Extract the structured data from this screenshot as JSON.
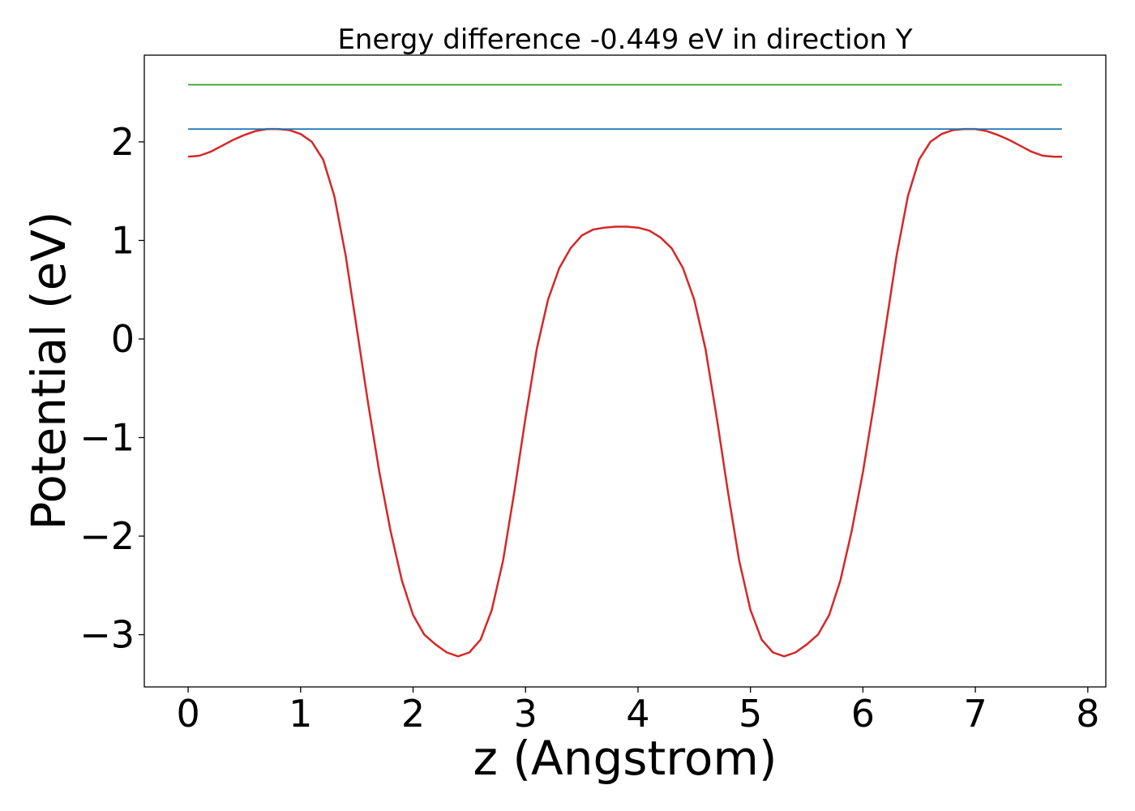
{
  "chart_data": {
    "type": "line",
    "title": "Energy difference -0.449 eV in direction Y",
    "xlabel": "z (Angstrom)",
    "ylabel": "Potential (eV)",
    "xlim": [
      -0.39,
      8.16
    ],
    "ylim": [
      -3.53,
      2.88
    ],
    "x_ticks": [
      0,
      1,
      2,
      3,
      4,
      5,
      6,
      7,
      8
    ],
    "y_ticks": [
      -3,
      -2,
      -1,
      0,
      1,
      2
    ],
    "x_tick_labels": [
      "0",
      "1",
      "2",
      "3",
      "4",
      "5",
      "6",
      "7",
      "8"
    ],
    "y_tick_labels": [
      "−3",
      "−2",
      "−1",
      "0",
      "1",
      "2"
    ],
    "grid": false,
    "series": [
      {
        "color": "#d62728",
        "x": [
          0,
          0.1,
          0.2,
          0.3,
          0.4,
          0.5,
          0.6,
          0.7,
          0.8,
          0.9,
          1.0,
          1.1,
          1.2,
          1.3,
          1.4,
          1.5,
          1.6,
          1.7,
          1.8,
          1.9,
          2.0,
          2.1,
          2.2,
          2.3,
          2.4,
          2.5,
          2.6,
          2.7,
          2.8,
          2.9,
          3.0,
          3.1,
          3.2,
          3.3,
          3.4,
          3.5,
          3.6,
          3.7,
          3.8,
          3.9,
          4.0,
          4.1,
          4.2,
          4.3,
          4.4,
          4.5,
          4.6,
          4.7,
          4.8,
          4.9,
          5.0,
          5.1,
          5.2,
          5.3,
          5.4,
          5.5,
          5.6,
          5.7,
          5.8,
          5.9,
          6.0,
          6.1,
          6.2,
          6.3,
          6.4,
          6.5,
          6.6,
          6.7,
          6.8,
          6.9,
          7.0,
          7.1,
          7.2,
          7.3,
          7.4,
          7.5,
          7.6,
          7.7,
          7.77
        ],
        "values": [
          1.85,
          1.86,
          1.9,
          1.96,
          2.02,
          2.07,
          2.11,
          2.13,
          2.13,
          2.12,
          2.08,
          2.0,
          1.82,
          1.45,
          0.85,
          0.1,
          -0.65,
          -1.35,
          -1.95,
          -2.45,
          -2.8,
          -3.0,
          -3.1,
          -3.18,
          -3.22,
          -3.18,
          -3.05,
          -2.75,
          -2.25,
          -1.55,
          -0.8,
          -0.1,
          0.4,
          0.72,
          0.92,
          1.05,
          1.11,
          1.13,
          1.14,
          1.14,
          1.13,
          1.1,
          1.03,
          0.92,
          0.72,
          0.4,
          -0.1,
          -0.8,
          -1.55,
          -2.25,
          -2.75,
          -3.05,
          -3.18,
          -3.22,
          -3.18,
          -3.1,
          -3.0,
          -2.8,
          -2.45,
          -1.95,
          -1.35,
          -0.65,
          0.1,
          0.85,
          1.45,
          1.82,
          2.0,
          2.08,
          2.12,
          2.13,
          2.13,
          2.11,
          2.07,
          2.02,
          1.96,
          1.9,
          1.86,
          1.85,
          1.85
        ]
      },
      {
        "color": "#1f77b4",
        "x": [
          0,
          7.77
        ],
        "values": [
          2.13,
          2.13
        ]
      },
      {
        "color": "#2ca02c",
        "x": [
          0,
          7.77
        ],
        "values": [
          2.58,
          2.58
        ]
      }
    ]
  }
}
